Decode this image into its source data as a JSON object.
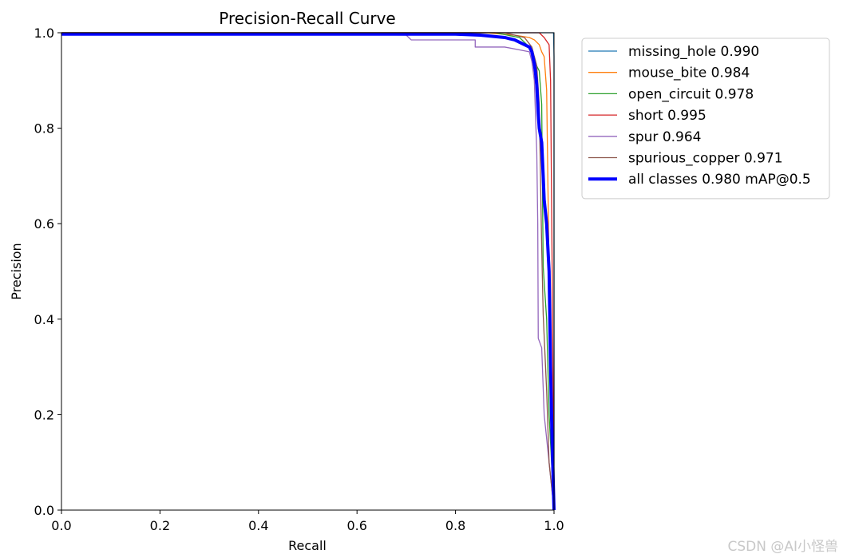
{
  "chart_data": {
    "type": "line",
    "title": "Precision-Recall Curve",
    "xlabel": "Recall",
    "ylabel": "Precision",
    "xlim": [
      0,
      1
    ],
    "ylim": [
      0,
      1
    ],
    "xticks": [
      "0.0",
      "0.2",
      "0.4",
      "0.6",
      "0.8",
      "1.0"
    ],
    "yticks": [
      "0.0",
      "0.2",
      "0.4",
      "0.6",
      "0.8",
      "1.0"
    ],
    "grid": false,
    "legend_position": "outside-right-top",
    "series": [
      {
        "name": "missing_hole 0.990",
        "color": "#1f77b4",
        "width": 1.3,
        "points": [
          [
            0,
            1
          ],
          [
            0.999,
            1
          ],
          [
            1,
            0.95
          ],
          [
            1,
            0
          ]
        ]
      },
      {
        "name": "mouse_bite 0.984",
        "color": "#ff7f0e",
        "width": 1.3,
        "points": [
          [
            0,
            1
          ],
          [
            0.86,
            1
          ],
          [
            0.92,
            0.995
          ],
          [
            0.95,
            0.99
          ],
          [
            0.96,
            0.985
          ],
          [
            0.97,
            0.975
          ],
          [
            0.975,
            0.96
          ],
          [
            0.98,
            0.95
          ],
          [
            0.985,
            0.88
          ],
          [
            0.99,
            0.5
          ],
          [
            0.995,
            0.2
          ],
          [
            1,
            0
          ]
        ]
      },
      {
        "name": "open_circuit 0.978",
        "color": "#2ca02c",
        "width": 1.3,
        "points": [
          [
            0,
            1
          ],
          [
            0.88,
            1
          ],
          [
            0.93,
            0.99
          ],
          [
            0.95,
            0.97
          ],
          [
            0.96,
            0.95
          ],
          [
            0.965,
            0.93
          ],
          [
            0.97,
            0.92
          ],
          [
            0.975,
            0.85
          ],
          [
            0.978,
            0.51
          ],
          [
            0.985,
            0.4
          ],
          [
            0.99,
            0.2
          ],
          [
            1,
            0
          ]
        ]
      },
      {
        "name": "short 0.995",
        "color": "#d62728",
        "width": 1.3,
        "points": [
          [
            0,
            1
          ],
          [
            0.65,
            1
          ],
          [
            0.9,
            1
          ],
          [
            0.97,
            1
          ],
          [
            0.98,
            0.99
          ],
          [
            0.99,
            0.975
          ],
          [
            0.993,
            0.9
          ],
          [
            0.996,
            0.53
          ],
          [
            1,
            0
          ]
        ]
      },
      {
        "name": "spur 0.964",
        "color": "#9467bd",
        "width": 1.3,
        "points": [
          [
            0,
            0.997
          ],
          [
            0.02,
            0.997
          ],
          [
            0.5,
            0.997
          ],
          [
            0.7,
            0.995
          ],
          [
            0.71,
            0.985
          ],
          [
            0.75,
            0.985
          ],
          [
            0.84,
            0.985
          ],
          [
            0.84,
            0.97
          ],
          [
            0.9,
            0.97
          ],
          [
            0.95,
            0.96
          ],
          [
            0.955,
            0.94
          ],
          [
            0.96,
            0.9
          ],
          [
            0.962,
            0.84
          ],
          [
            0.965,
            0.75
          ],
          [
            0.967,
            0.6
          ],
          [
            0.968,
            0.36
          ],
          [
            0.975,
            0.34
          ],
          [
            0.98,
            0.2
          ],
          [
            0.99,
            0.1
          ],
          [
            1,
            0
          ]
        ]
      },
      {
        "name": "spurious_copper 0.971",
        "color": "#8c564b",
        "width": 1.3,
        "points": [
          [
            0,
            1
          ],
          [
            0.9,
            1
          ],
          [
            0.94,
            0.99
          ],
          [
            0.955,
            0.97
          ],
          [
            0.965,
            0.93
          ],
          [
            0.97,
            0.85
          ],
          [
            0.975,
            0.55
          ],
          [
            0.978,
            0.41
          ],
          [
            0.985,
            0.25
          ],
          [
            0.99,
            0.1
          ],
          [
            1,
            0
          ]
        ]
      },
      {
        "name": "all classes 0.980 mAP@0.5",
        "color": "#0000ff",
        "width": 4,
        "points": [
          [
            0,
            0.997
          ],
          [
            0.8,
            0.997
          ],
          [
            0.85,
            0.995
          ],
          [
            0.9,
            0.99
          ],
          [
            0.92,
            0.985
          ],
          [
            0.94,
            0.975
          ],
          [
            0.95,
            0.97
          ],
          [
            0.955,
            0.96
          ],
          [
            0.96,
            0.935
          ],
          [
            0.962,
            0.92
          ],
          [
            0.965,
            0.89
          ],
          [
            0.968,
            0.83
          ],
          [
            0.97,
            0.8
          ],
          [
            0.975,
            0.77
          ],
          [
            0.978,
            0.7
          ],
          [
            0.98,
            0.65
          ],
          [
            0.985,
            0.6
          ],
          [
            0.99,
            0.5
          ],
          [
            0.993,
            0.3
          ],
          [
            0.996,
            0.15
          ],
          [
            1,
            0
          ]
        ]
      }
    ]
  },
  "watermark": "CSDN @AI小怪兽"
}
